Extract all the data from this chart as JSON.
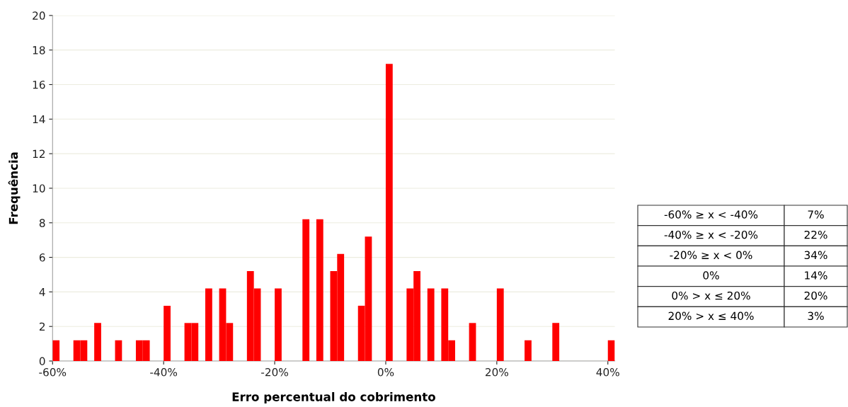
{
  "chart_data": {
    "type": "histogram",
    "xlabel": "Erro percentual do cobrimento",
    "ylabel": "Frequência",
    "color": "#ff0000",
    "bins": [
      -60,
      -58.75,
      -57.5,
      -56.25,
      -55,
      -53.75,
      -52.5,
      -51.25,
      -50,
      -48.75,
      -47.5,
      -46.25,
      -45,
      -43.75,
      -42.5,
      -41.25,
      -40,
      -38.75,
      -37.5,
      -36.25,
      -35,
      -33.75,
      -32.5,
      -31.25,
      -30,
      -28.75,
      -27.5,
      -26.25,
      -25,
      -23.75,
      -22.5,
      -21.25,
      -20,
      -18.75,
      -17.5,
      -16.25,
      -15,
      -13.75,
      -12.5,
      -11.25,
      -10,
      -8.75,
      -7.5,
      -6.25,
      -5,
      -3.75,
      -2.5,
      -1.25,
      0,
      1.25,
      2.5,
      3.75,
      5,
      6.25,
      7.5,
      8.75,
      10,
      11.25,
      12.5,
      13.75,
      15,
      16.25,
      17.5,
      18.75,
      20,
      21.25,
      22.5,
      23.75,
      25,
      26.25,
      27.5,
      28.75,
      30,
      31.25,
      32.5,
      33.75,
      35,
      36.25,
      37.5,
      38.75,
      40,
      41.25
    ],
    "values": [
      1.2,
      0,
      0,
      1.2,
      1.2,
      0,
      2.2,
      0,
      0,
      1.2,
      0,
      0,
      1.2,
      1.2,
      0,
      0,
      3.2,
      0,
      0,
      2.2,
      2.2,
      0,
      4.2,
      0,
      4.2,
      2.2,
      0,
      0,
      5.2,
      4.2,
      0,
      0,
      4.2,
      0,
      0,
      0,
      8.2,
      0,
      8.2,
      0,
      5.2,
      6.2,
      0,
      0,
      3.2,
      7.2,
      0,
      0,
      17.2,
      0,
      0,
      4.2,
      5.2,
      0,
      4.2,
      0,
      4.2,
      1.2,
      0,
      0,
      2.2,
      0,
      0,
      0,
      4.2,
      0,
      0,
      0,
      1.2,
      0,
      0,
      0,
      2.2,
      0,
      0,
      0,
      0,
      0,
      0,
      0,
      1.2
    ],
    "xlim": [
      -60,
      41.25
    ],
    "xticks": [
      {
        "value": -60,
        "label": "-60%"
      },
      {
        "value": -40,
        "label": "-40%"
      },
      {
        "value": -20,
        "label": "-20%"
      },
      {
        "value": 0,
        "label": "0%"
      },
      {
        "value": 20,
        "label": "20%"
      },
      {
        "value": 40,
        "label": "40%"
      }
    ],
    "ylim": [
      0,
      20
    ],
    "yticks": [
      0,
      2,
      4,
      6,
      8,
      10,
      12,
      14,
      16,
      18,
      20
    ],
    "grid": "y",
    "annotations": [
      "-60% ≥ x < -40%",
      "7%",
      "-40% ≥ x < -20%",
      "22%",
      "-20% ≥ x < 0%",
      "34%",
      "0%",
      "14%",
      "0% > x ≤ 20%",
      "20%",
      "20% > x ≤ 40%",
      "3%"
    ]
  }
}
